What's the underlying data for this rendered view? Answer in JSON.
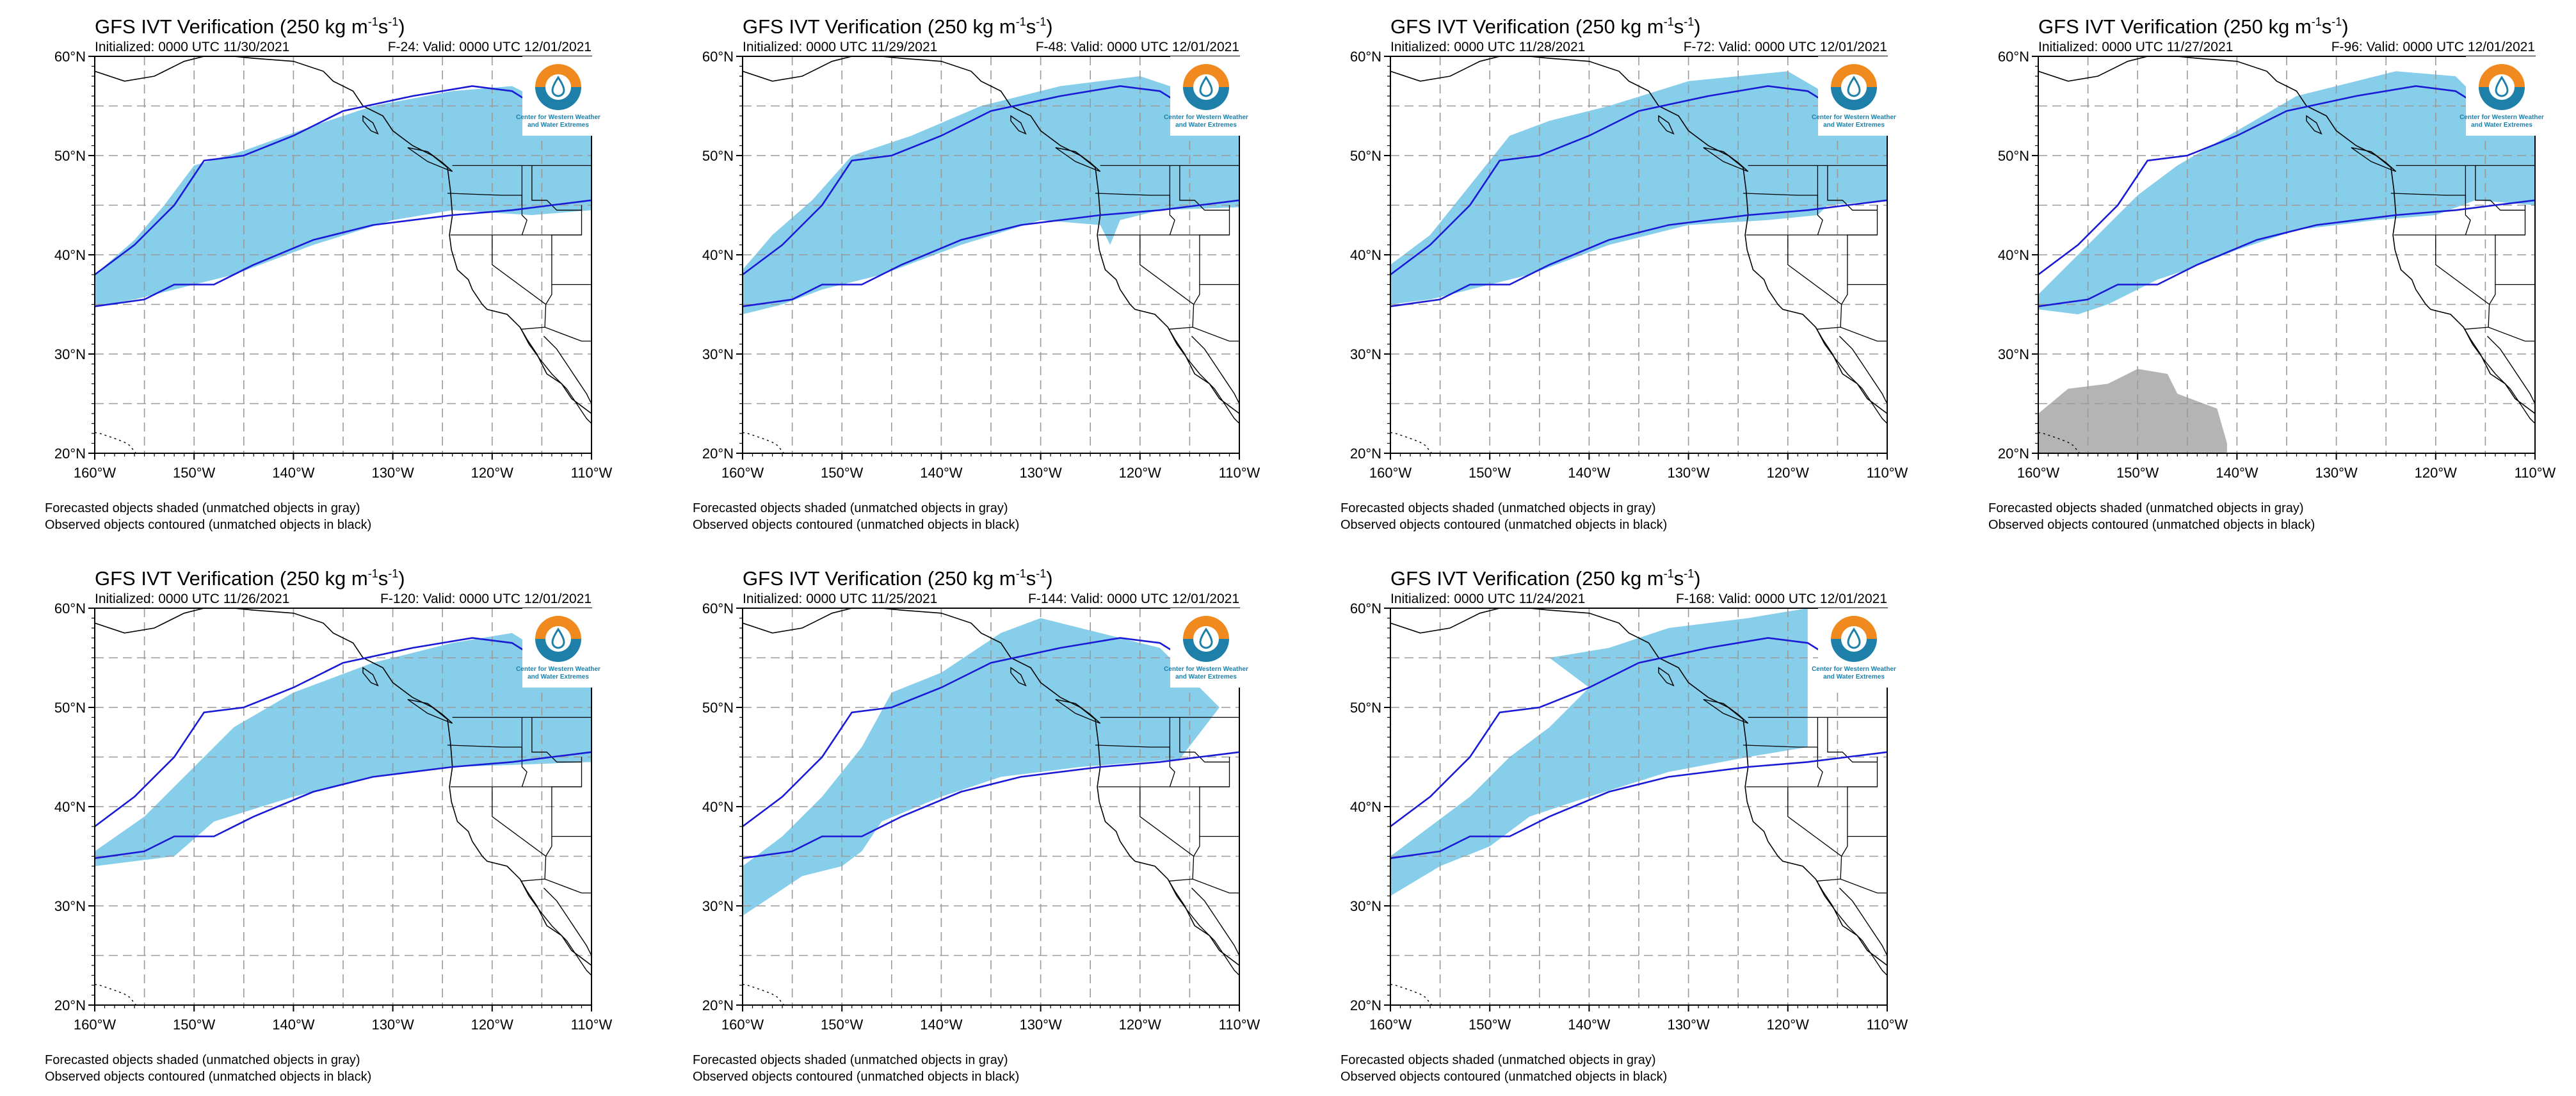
{
  "figure": {
    "title": "GFS IVT Verification (250 kg m",
    "title_units": "-1",
    "title_s": "s",
    "title_tail": ")",
    "footnote_forecast": "Forecasted objects shaded (unmatched objects in gray)",
    "footnote_observed": "Observed objects contoured (unmatched objects in black)",
    "logo_text_line1": "Center for Western Weather",
    "logo_text_line2": "and Water Extremes",
    "valid": "0000 UTC 12/01/2021"
  },
  "axes": {
    "lon_range": [
      -160,
      -110
    ],
    "lat_range": [
      20,
      60
    ],
    "lon_ticks": [
      -160,
      -150,
      -140,
      -130,
      -120,
      -110
    ],
    "lat_ticks": [
      60,
      50,
      40,
      30,
      20
    ],
    "lon_labels": [
      "160°W",
      "150°W",
      "140°W",
      "130°W",
      "120°W",
      "110°W"
    ],
    "lat_labels": [
      "60°N",
      "50°N",
      "40°N",
      "30°N",
      "20°N"
    ],
    "grid": "dashed, every 5°"
  },
  "colors": {
    "forecast_matched": "#87ceeb",
    "forecast_unmatched": "#b4b4b4",
    "observed_contour": "#1a1ad6",
    "coast": "#000000",
    "grid": "#9a9a9a",
    "logo_orange": "#f08a1e",
    "logo_teal": "#1e7fa8"
  },
  "observed_object": {
    "north_edge": [
      [
        -160,
        38
      ],
      [
        -156,
        41
      ],
      [
        -152,
        45
      ],
      [
        -149,
        49.5
      ],
      [
        -145,
        50
      ],
      [
        -140,
        52
      ],
      [
        -135,
        54.5
      ],
      [
        -128,
        56
      ],
      [
        -122,
        57
      ],
      [
        -118,
        56.5
      ],
      [
        -114,
        54
      ],
      [
        -110,
        54
      ]
    ],
    "south_edge": [
      [
        -160,
        34.8
      ],
      [
        -155,
        35.5
      ],
      [
        -152,
        37
      ],
      [
        -148,
        37
      ],
      [
        -144,
        39
      ],
      [
        -138,
        41.5
      ],
      [
        -132,
        43
      ],
      [
        -124,
        44
      ],
      [
        -118,
        44.5
      ],
      [
        -114,
        45
      ],
      [
        -110,
        45.5
      ]
    ]
  },
  "panels": [
    {
      "init": "Initialized: 0000 UTC 11/30/2021",
      "fcst": "F-24: Valid: 0000 UTC 12/01/2021",
      "unmatched": [],
      "shade": [
        [
          -160,
          38
        ],
        [
          -156,
          41.5
        ],
        [
          -153,
          45
        ],
        [
          -150,
          49
        ],
        [
          -145,
          50.5
        ],
        [
          -138,
          53
        ],
        [
          -132,
          55
        ],
        [
          -124,
          56.5
        ],
        [
          -118,
          57
        ],
        [
          -114,
          55
        ],
        [
          -110,
          53
        ],
        [
          -110,
          44.5
        ],
        [
          -116,
          44
        ],
        [
          -124,
          44.5
        ],
        [
          -130,
          43.5
        ],
        [
          -138,
          41
        ],
        [
          -146,
          38
        ],
        [
          -152,
          36.5
        ],
        [
          -156,
          35.5
        ],
        [
          -160,
          34.8
        ]
      ]
    },
    {
      "init": "Initialized: 0000 UTC 11/29/2021",
      "fcst": "F-48: Valid: 0000 UTC 12/01/2021",
      "unmatched": [],
      "shade": [
        [
          -160,
          38.5
        ],
        [
          -157,
          42
        ],
        [
          -153,
          45.5
        ],
        [
          -149,
          50
        ],
        [
          -143,
          52
        ],
        [
          -136,
          55
        ],
        [
          -128,
          57
        ],
        [
          -120,
          58
        ],
        [
          -114,
          56
        ],
        [
          -110,
          54
        ],
        [
          -110,
          44.8
        ],
        [
          -118,
          44.5
        ],
        [
          -122,
          43.5
        ],
        [
          -123,
          41
        ],
        [
          -124,
          43
        ],
        [
          -130,
          43.5
        ],
        [
          -138,
          41
        ],
        [
          -146,
          38
        ],
        [
          -152,
          36.5
        ],
        [
          -156,
          35
        ],
        [
          -160,
          34
        ]
      ]
    },
    {
      "init": "Initialized: 0000 UTC 11/28/2021",
      "fcst": "F-72: Valid: 0000 UTC 12/01/2021",
      "unmatched": [],
      "shade": [
        [
          -160,
          39
        ],
        [
          -156,
          42
        ],
        [
          -152,
          47
        ],
        [
          -148,
          52
        ],
        [
          -144,
          53.5
        ],
        [
          -138,
          55
        ],
        [
          -130,
          57.5
        ],
        [
          -120,
          58.5
        ],
        [
          -114,
          55
        ],
        [
          -110,
          55
        ],
        [
          -110,
          45.5
        ],
        [
          -116,
          45
        ],
        [
          -117,
          44
        ],
        [
          -122,
          43.5
        ],
        [
          -130,
          43
        ],
        [
          -138,
          41
        ],
        [
          -146,
          38
        ],
        [
          -152,
          36.5
        ],
        [
          -156,
          35.5
        ],
        [
          -160,
          35
        ]
      ]
    },
    {
      "init": "Initialized: 0000 UTC 11/27/2021",
      "fcst": "F-96: Valid: 0000 UTC 12/01/2021",
      "unmatched": [
        [
          [
            -160,
            24
          ],
          [
            -157,
            26.5
          ],
          [
            -153,
            27
          ],
          [
            -150,
            28.5
          ],
          [
            -147,
            28
          ],
          [
            -146,
            26
          ],
          [
            -142,
            24.5
          ],
          [
            -141,
            21
          ],
          [
            -141,
            20
          ],
          [
            -160,
            20
          ]
        ]
      ],
      "shade": [
        [
          -160,
          36
        ],
        [
          -157,
          39
        ],
        [
          -154,
          42
        ],
        [
          -150,
          46
        ],
        [
          -146,
          49
        ],
        [
          -140,
          52.5
        ],
        [
          -134,
          56
        ],
        [
          -124,
          58.5
        ],
        [
          -118,
          58
        ],
        [
          -114,
          54
        ],
        [
          -110,
          53
        ],
        [
          -110,
          45
        ],
        [
          -116,
          45.5
        ],
        [
          -120,
          44
        ],
        [
          -126,
          43.5
        ],
        [
          -134,
          42.5
        ],
        [
          -140,
          40.5
        ],
        [
          -145,
          38.5
        ],
        [
          -148,
          37.5
        ],
        [
          -153,
          35
        ],
        [
          -156,
          34
        ],
        [
          -160,
          34.5
        ]
      ]
    },
    {
      "init": "Initialized: 0000 UTC 11/26/2021",
      "fcst": "F-120: Valid: 0000 UTC 12/01/2021",
      "unmatched": [],
      "shade": [
        [
          -160,
          35.5
        ],
        [
          -155,
          39
        ],
        [
          -150,
          44
        ],
        [
          -146,
          48
        ],
        [
          -140,
          51.5
        ],
        [
          -132,
          54.5
        ],
        [
          -124,
          56.5
        ],
        [
          -118,
          57.5
        ],
        [
          -114,
          55
        ],
        [
          -110,
          54
        ],
        [
          -110,
          44.5
        ],
        [
          -118,
          44.2
        ],
        [
          -124,
          44
        ],
        [
          -132,
          43
        ],
        [
          -140,
          41
        ],
        [
          -148,
          38.5
        ],
        [
          -152,
          35
        ],
        [
          -156,
          34.5
        ],
        [
          -160,
          34
        ]
      ]
    },
    {
      "init": "Initialized: 0000 UTC 11/25/2021",
      "fcst": "F-144: Valid: 0000 UTC 12/01/2021",
      "unmatched": [],
      "shade": [
        [
          -160,
          34
        ],
        [
          -156,
          37
        ],
        [
          -152,
          41
        ],
        [
          -148,
          46
        ],
        [
          -145,
          51.5
        ],
        [
          -140,
          53.5
        ],
        [
          -134,
          57.5
        ],
        [
          -130,
          59
        ],
        [
          -124,
          57.5
        ],
        [
          -118,
          56
        ],
        [
          -114,
          52
        ],
        [
          -112,
          50
        ],
        [
          -116,
          44.8
        ],
        [
          -126,
          44
        ],
        [
          -134,
          43
        ],
        [
          -140,
          41
        ],
        [
          -146,
          38.5
        ],
        [
          -148,
          35.5
        ],
        [
          -150,
          34
        ],
        [
          -154,
          33
        ],
        [
          -160,
          29
        ]
      ]
    },
    {
      "init": "Initialized: 0000 UTC 11/24/2021",
      "fcst": "F-168: Valid: 0000 UTC 12/01/2021",
      "unmatched": [],
      "shade": [
        [
          -160,
          35
        ],
        [
          -156,
          38
        ],
        [
          -152,
          41
        ],
        [
          -148,
          45
        ],
        [
          -144,
          48
        ],
        [
          -140,
          52
        ],
        [
          -144,
          55
        ],
        [
          -138,
          56
        ],
        [
          -132,
          58
        ],
        [
          -124,
          59
        ],
        [
          -118,
          60
        ],
        [
          -118,
          46
        ],
        [
          -124,
          45
        ],
        [
          -132,
          43.5
        ],
        [
          -140,
          41
        ],
        [
          -146,
          39
        ],
        [
          -150,
          36
        ],
        [
          -155,
          34
        ],
        [
          -160,
          31
        ]
      ]
    }
  ]
}
